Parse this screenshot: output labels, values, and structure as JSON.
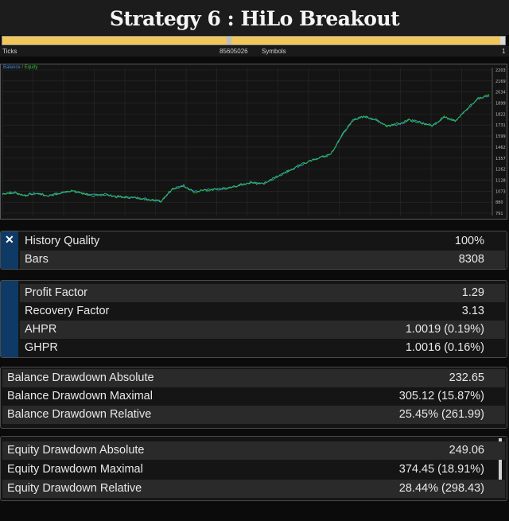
{
  "title": "Strategy 6 : HiLo Breakout",
  "progress": {
    "fraction": 0.99
  },
  "ticks_bar": {
    "ticks_label": "Ticks",
    "ticks_value": "85605026",
    "symbols_label": "Symbols",
    "symbols_value": "1"
  },
  "chart": {
    "legend_balance": "Balance",
    "legend_equity": "Equity",
    "y_ticks": [
      "2203",
      "2169",
      "2034",
      "1899",
      "1822",
      "1731",
      "1599",
      "1462",
      "1357",
      "1262",
      "1128",
      "1073",
      "880",
      "791"
    ]
  },
  "chart_data": {
    "type": "line",
    "series": [
      {
        "name": "Balance",
        "values": [
          1000,
          1010,
          985,
          1005,
          980,
          1000,
          1030,
          1005,
          985,
          990,
          975,
          965,
          960,
          945,
          930,
          1040,
          1080,
          1020,
          1035,
          1040,
          1055,
          1080,
          1110,
          1095,
          1145,
          1205,
          1255,
          1300,
          1345,
          1370,
          1555,
          1710,
          1735,
          1705,
          1650,
          1665,
          1700,
          1680,
          1650,
          1730,
          1700,
          1795,
          1905,
          1935
        ]
      },
      {
        "name": "Equity",
        "values": [
          1000,
          1012,
          982,
          1008,
          976,
          1003,
          1028,
          1003,
          982,
          992,
          972,
          962,
          958,
          940,
          925,
          1048,
          1075,
          1015,
          1032,
          1042,
          1052,
          1085,
          1105,
          1092,
          1150,
          1200,
          1260,
          1305,
          1340,
          1375,
          1560,
          1705,
          1740,
          1700,
          1645,
          1670,
          1705,
          1675,
          1645,
          1735,
          1695,
          1800,
          1910,
          1940
        ]
      }
    ],
    "ylim": [
      791,
      2203
    ],
    "grid": true,
    "legend_position": "top-left"
  },
  "panels": [
    {
      "rows": [
        {
          "label": "History Quality",
          "value": "100%"
        },
        {
          "label": "Bars",
          "value": "8308"
        }
      ]
    },
    {
      "rows": [
        {
          "label": "Profit Factor",
          "value": "1.29"
        },
        {
          "label": "Recovery Factor",
          "value": "3.13"
        },
        {
          "label": "AHPR",
          "value": "1.0019 (0.19%)"
        },
        {
          "label": "GHPR",
          "value": "1.0016 (0.16%)"
        }
      ]
    },
    {
      "rows": [
        {
          "label": "Balance Drawdown Absolute",
          "value": "232.65"
        },
        {
          "label": "Balance Drawdown Maximal",
          "value": "305.12 (15.87%)"
        },
        {
          "label": "Balance Drawdown Relative",
          "value": "25.45% (261.99)"
        }
      ]
    },
    {
      "rows": [
        {
          "label": "Equity Drawdown Absolute",
          "value": "249.06"
        },
        {
          "label": "Equity Drawdown Maximal",
          "value": "374.45 (18.91%)"
        },
        {
          "label": "Equity Drawdown Relative",
          "value": "28.44% (298.43)"
        }
      ]
    }
  ],
  "colors": {
    "balance_line": "#3c8de0",
    "equity_line": "#27c23a",
    "accent": "#0f3a66",
    "progress": "#f1c65b"
  },
  "icons": {
    "close": "close-icon"
  }
}
